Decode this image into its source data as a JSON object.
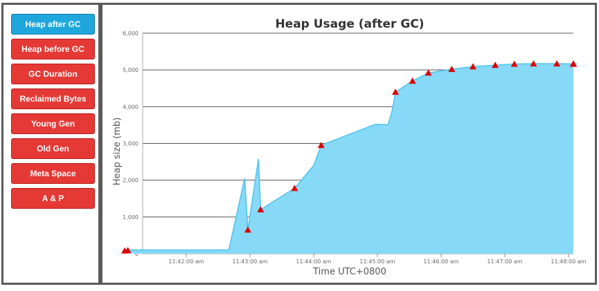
{
  "sidebar": {
    "items": [
      {
        "label": "Heap after GC",
        "active": true
      },
      {
        "label": "Heap before GC",
        "active": false
      },
      {
        "label": "GC Duration",
        "active": false
      },
      {
        "label": "Reclaimed Bytes",
        "active": false
      },
      {
        "label": "Young Gen",
        "active": false
      },
      {
        "label": "Old Gen",
        "active": false
      },
      {
        "label": "Meta Space",
        "active": false
      },
      {
        "label": "A & P",
        "active": false
      }
    ],
    "colors": {
      "active": "#1fa7dd",
      "inactive": "#e53935"
    }
  },
  "chart_data": {
    "type": "area",
    "title": "Heap Usage (after GC)",
    "xlabel": "Time UTC+0800",
    "ylabel": "Heap size (mb)",
    "ylim": [
      0,
      6000
    ],
    "y_ticks": [
      "0",
      "1,000",
      "2,000",
      "3,000",
      "4,000",
      "5,000",
      "6,000"
    ],
    "x_ticks": [
      "11:42:00 am",
      "11:43:00 am",
      "11:44:00 am",
      "11:45:00 am",
      "11:46:00 am",
      "11:47:00 am",
      "11:48:00 am"
    ],
    "grid": true,
    "fill_color": "#87d9f8",
    "line_color": "#4cc3ee",
    "marker_color": "#dd0000",
    "line": [
      {
        "t": "11:41:02",
        "v": 100
      },
      {
        "t": "11:41:05",
        "v": 100
      },
      {
        "t": "11:42:40",
        "v": 100
      },
      {
        "t": "11:42:55",
        "v": 2050
      },
      {
        "t": "11:42:58",
        "v": 650
      },
      {
        "t": "11:43:08",
        "v": 2580
      },
      {
        "t": "11:43:10",
        "v": 1200
      },
      {
        "t": "11:43:42",
        "v": 1780
      },
      {
        "t": "11:44:00",
        "v": 2400
      },
      {
        "t": "11:44:07",
        "v": 2950
      },
      {
        "t": "11:44:58",
        "v": 3520
      },
      {
        "t": "11:45:10",
        "v": 3510
      },
      {
        "t": "11:45:14",
        "v": 3900
      },
      {
        "t": "11:45:17",
        "v": 4400
      },
      {
        "t": "11:45:33",
        "v": 4700
      },
      {
        "t": "11:45:48",
        "v": 4920
      },
      {
        "t": "11:46:10",
        "v": 5020
      },
      {
        "t": "11:46:30",
        "v": 5090
      },
      {
        "t": "11:46:51",
        "v": 5130
      },
      {
        "t": "11:47:09",
        "v": 5160
      },
      {
        "t": "11:47:27",
        "v": 5170
      },
      {
        "t": "11:47:49",
        "v": 5170
      },
      {
        "t": "11:48:08",
        "v": 5160
      },
      {
        "t": "11:48:25",
        "v": 5170
      }
    ],
    "markers": [
      {
        "t": "11:41:02",
        "v": 80
      },
      {
        "t": "11:41:05",
        "v": 90
      },
      {
        "t": "11:42:58",
        "v": 650
      },
      {
        "t": "11:43:10",
        "v": 1200
      },
      {
        "t": "11:43:42",
        "v": 1780
      },
      {
        "t": "11:44:07",
        "v": 2950
      },
      {
        "t": "11:45:17",
        "v": 4400
      },
      {
        "t": "11:45:33",
        "v": 4700
      },
      {
        "t": "11:45:48",
        "v": 4920
      },
      {
        "t": "11:46:10",
        "v": 5020
      },
      {
        "t": "11:46:30",
        "v": 5090
      },
      {
        "t": "11:46:51",
        "v": 5130
      },
      {
        "t": "11:47:09",
        "v": 5160
      },
      {
        "t": "11:47:27",
        "v": 5170
      },
      {
        "t": "11:47:49",
        "v": 5170
      },
      {
        "t": "11:48:08",
        "v": 5160
      },
      {
        "t": "11:48:25",
        "v": 5170
      }
    ]
  }
}
